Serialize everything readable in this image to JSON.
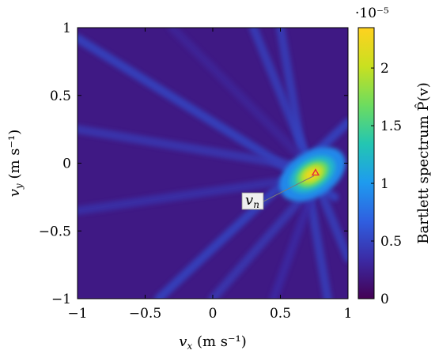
{
  "chart_data": {
    "type": "heatmap",
    "title": "",
    "xlabel": "v_x (m s⁻¹)",
    "ylabel": "v_y (m s⁻¹)",
    "colorbar_label": "Bartlett spectrum P̂(v)",
    "colorbar_multiplier": "·10⁻⁵",
    "xlim": [
      -1,
      1
    ],
    "ylim": [
      -1,
      1
    ],
    "clim": [
      0,
      2.35
    ],
    "x_ticks": [
      "−1",
      "−0.5",
      "0",
      "0.5",
      "1"
    ],
    "y_ticks": [
      "1",
      "0.5",
      "0",
      "−0.5",
      "−1"
    ],
    "colorbar_ticks": [
      "2",
      "1.5",
      "1",
      "0.5",
      "0"
    ],
    "colormap": [
      "#440154",
      "#3b2aa4",
      "#2f5fe0",
      "#1e9bef",
      "#23c6b2",
      "#6ddc5f",
      "#c9e020",
      "#ffd21f"
    ],
    "background_level": 0.2,
    "peak": {
      "x": 0.76,
      "y": -0.07,
      "value": 2.3
    },
    "ridges": [
      {
        "x1": -1.0,
        "y1": 0.92,
        "x2": 0.9,
        "y2": -0.25,
        "value": 0.55
      },
      {
        "x1": -1.0,
        "y1": 0.25,
        "x2": 0.8,
        "y2": -0.05,
        "value": 0.45
      },
      {
        "x1": 0.3,
        "y1": 1.0,
        "x2": 1.0,
        "y2": -0.7,
        "value": 0.5
      },
      {
        "x1": 0.5,
        "y1": 1.0,
        "x2": 0.85,
        "y2": -1.0,
        "value": 0.5
      },
      {
        "x1": -0.4,
        "y1": -1.0,
        "x2": 1.0,
        "y2": 0.3,
        "value": 0.55
      },
      {
        "x1": 0.0,
        "y1": -1.0,
        "x2": 0.8,
        "y2": -0.1,
        "value": 0.45
      },
      {
        "x1": -1.0,
        "y1": -0.35,
        "x2": 0.75,
        "y2": -0.1,
        "value": 0.4
      },
      {
        "x1": -0.3,
        "y1": 1.0,
        "x2": 0.75,
        "y2": -0.05,
        "value": 0.3
      },
      {
        "x1": 0.45,
        "y1": -1.0,
        "x2": 0.78,
        "y2": -0.1,
        "value": 0.35
      }
    ],
    "annotation": {
      "label": "v_n",
      "x": 0.76,
      "y": -0.07,
      "marker_color": "#e8243a"
    }
  }
}
